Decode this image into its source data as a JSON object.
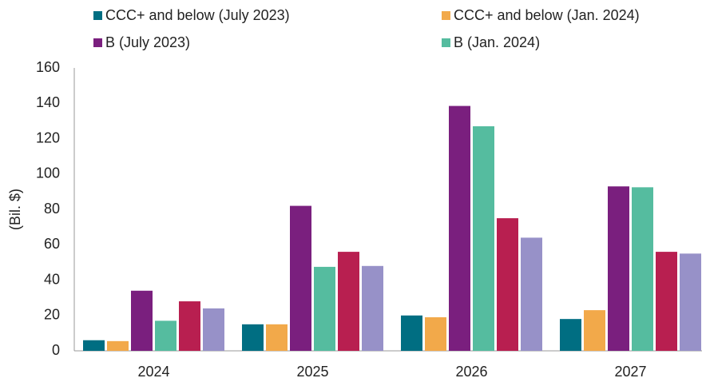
{
  "chart_data": {
    "type": "bar",
    "y_label": "(Bil. $)",
    "categories": [
      "2024",
      "2025",
      "2026",
      "2027"
    ],
    "series": [
      {
        "name": "CCC+ and below (July 2023)",
        "color": "#006e82",
        "values": [
          6,
          15,
          20,
          18
        ]
      },
      {
        "name": "CCC+ and below (Jan. 2024)",
        "color": "#f2a94a",
        "values": [
          5.5,
          15,
          19,
          23
        ]
      },
      {
        "name": "B (July 2023)",
        "color": "#7a1f7e",
        "values": [
          34,
          82,
          138.5,
          93
        ]
      },
      {
        "name": "B (Jan. 2024)",
        "color": "#55bc9f",
        "values": [
          17,
          47.5,
          127,
          92.5
        ]
      },
      {
        "color": "#b81f50",
        "values": [
          28,
          56,
          75,
          56
        ]
      },
      {
        "color": "#9791c8",
        "values": [
          24,
          48,
          64,
          55
        ]
      }
    ],
    "ylim": [
      0,
      160
    ],
    "yticks": [
      0,
      20,
      40,
      60,
      80,
      100,
      120,
      140,
      160
    ],
    "grid": false
  }
}
